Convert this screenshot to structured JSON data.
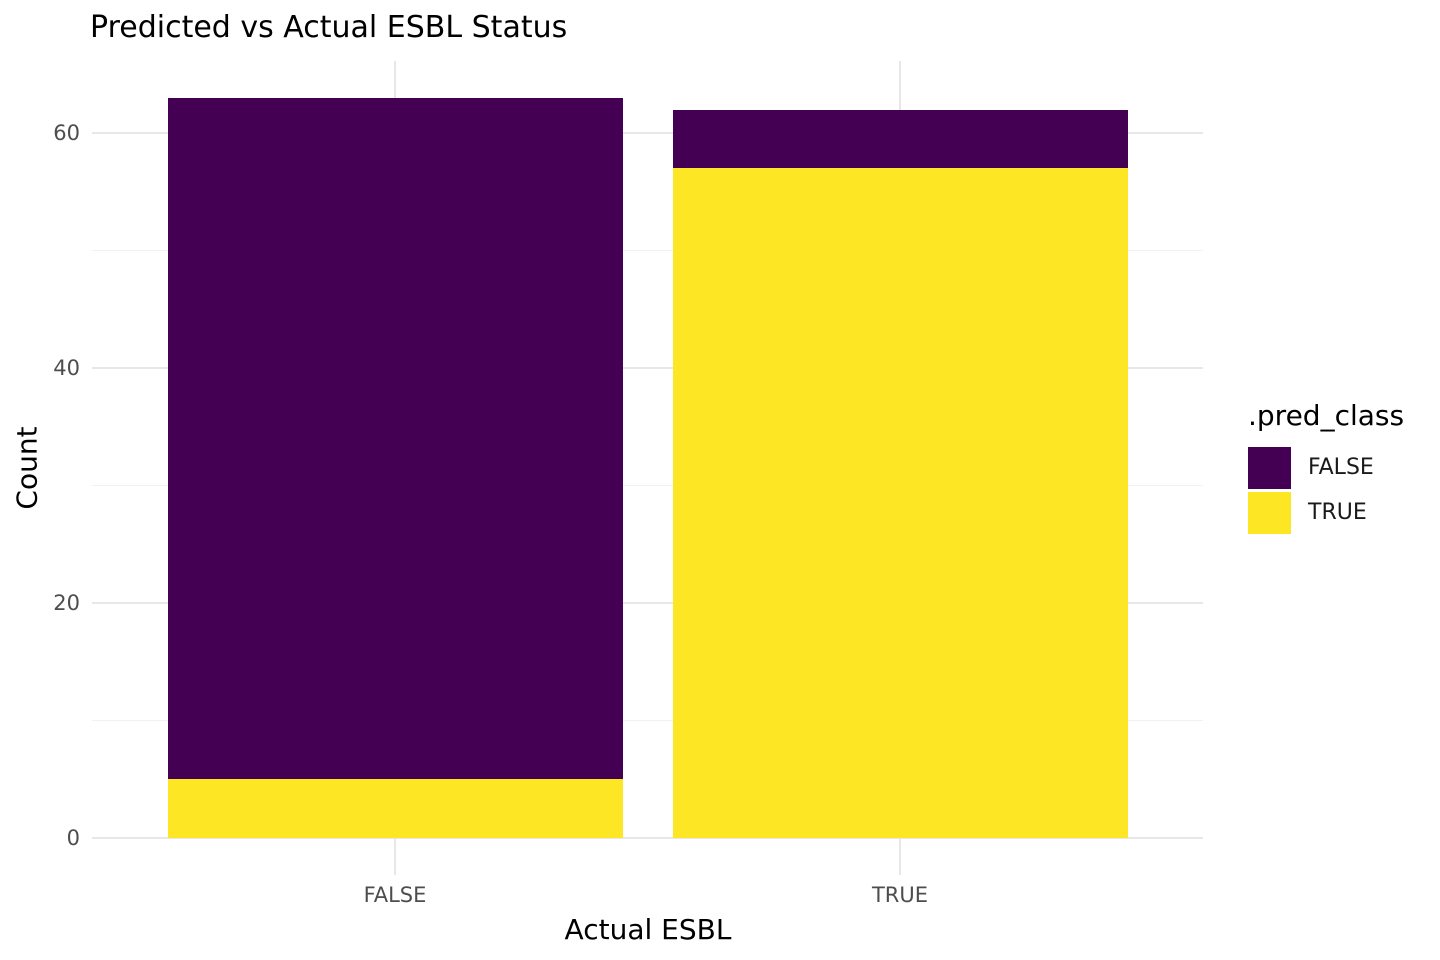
{
  "chart_data": {
    "type": "bar",
    "stacked": true,
    "title": "Predicted vs Actual ESBL Status",
    "xlabel": "Actual ESBL",
    "ylabel": "Count",
    "categories": [
      "FALSE",
      "TRUE"
    ],
    "series": [
      {
        "name": "FALSE",
        "color": "#440154",
        "values": [
          58,
          5
        ]
      },
      {
        "name": "TRUE",
        "color": "#FDE725",
        "values": [
          5,
          57
        ]
      }
    ],
    "stack_bottom_to_top": [
      "TRUE",
      "FALSE"
    ],
    "bar_totals": [
      63,
      62
    ],
    "y_axis": {
      "ticks": [
        0,
        20,
        40,
        60
      ],
      "minor_ticks": [
        10,
        30,
        50
      ],
      "lim": [
        0,
        63
      ]
    },
    "grid": true,
    "legend": {
      "title": ".pred_class",
      "position": "right",
      "entries": [
        {
          "label": "FALSE",
          "color": "#440154"
        },
        {
          "label": "TRUE",
          "color": "#FDE725"
        }
      ]
    },
    "colors": {
      "grid_major": "#E7E7E7",
      "grid_minor": "#F1F1F1",
      "axis_text": "#4D4D4D",
      "title_text": "#000000",
      "background": "#FFFFFF"
    }
  }
}
